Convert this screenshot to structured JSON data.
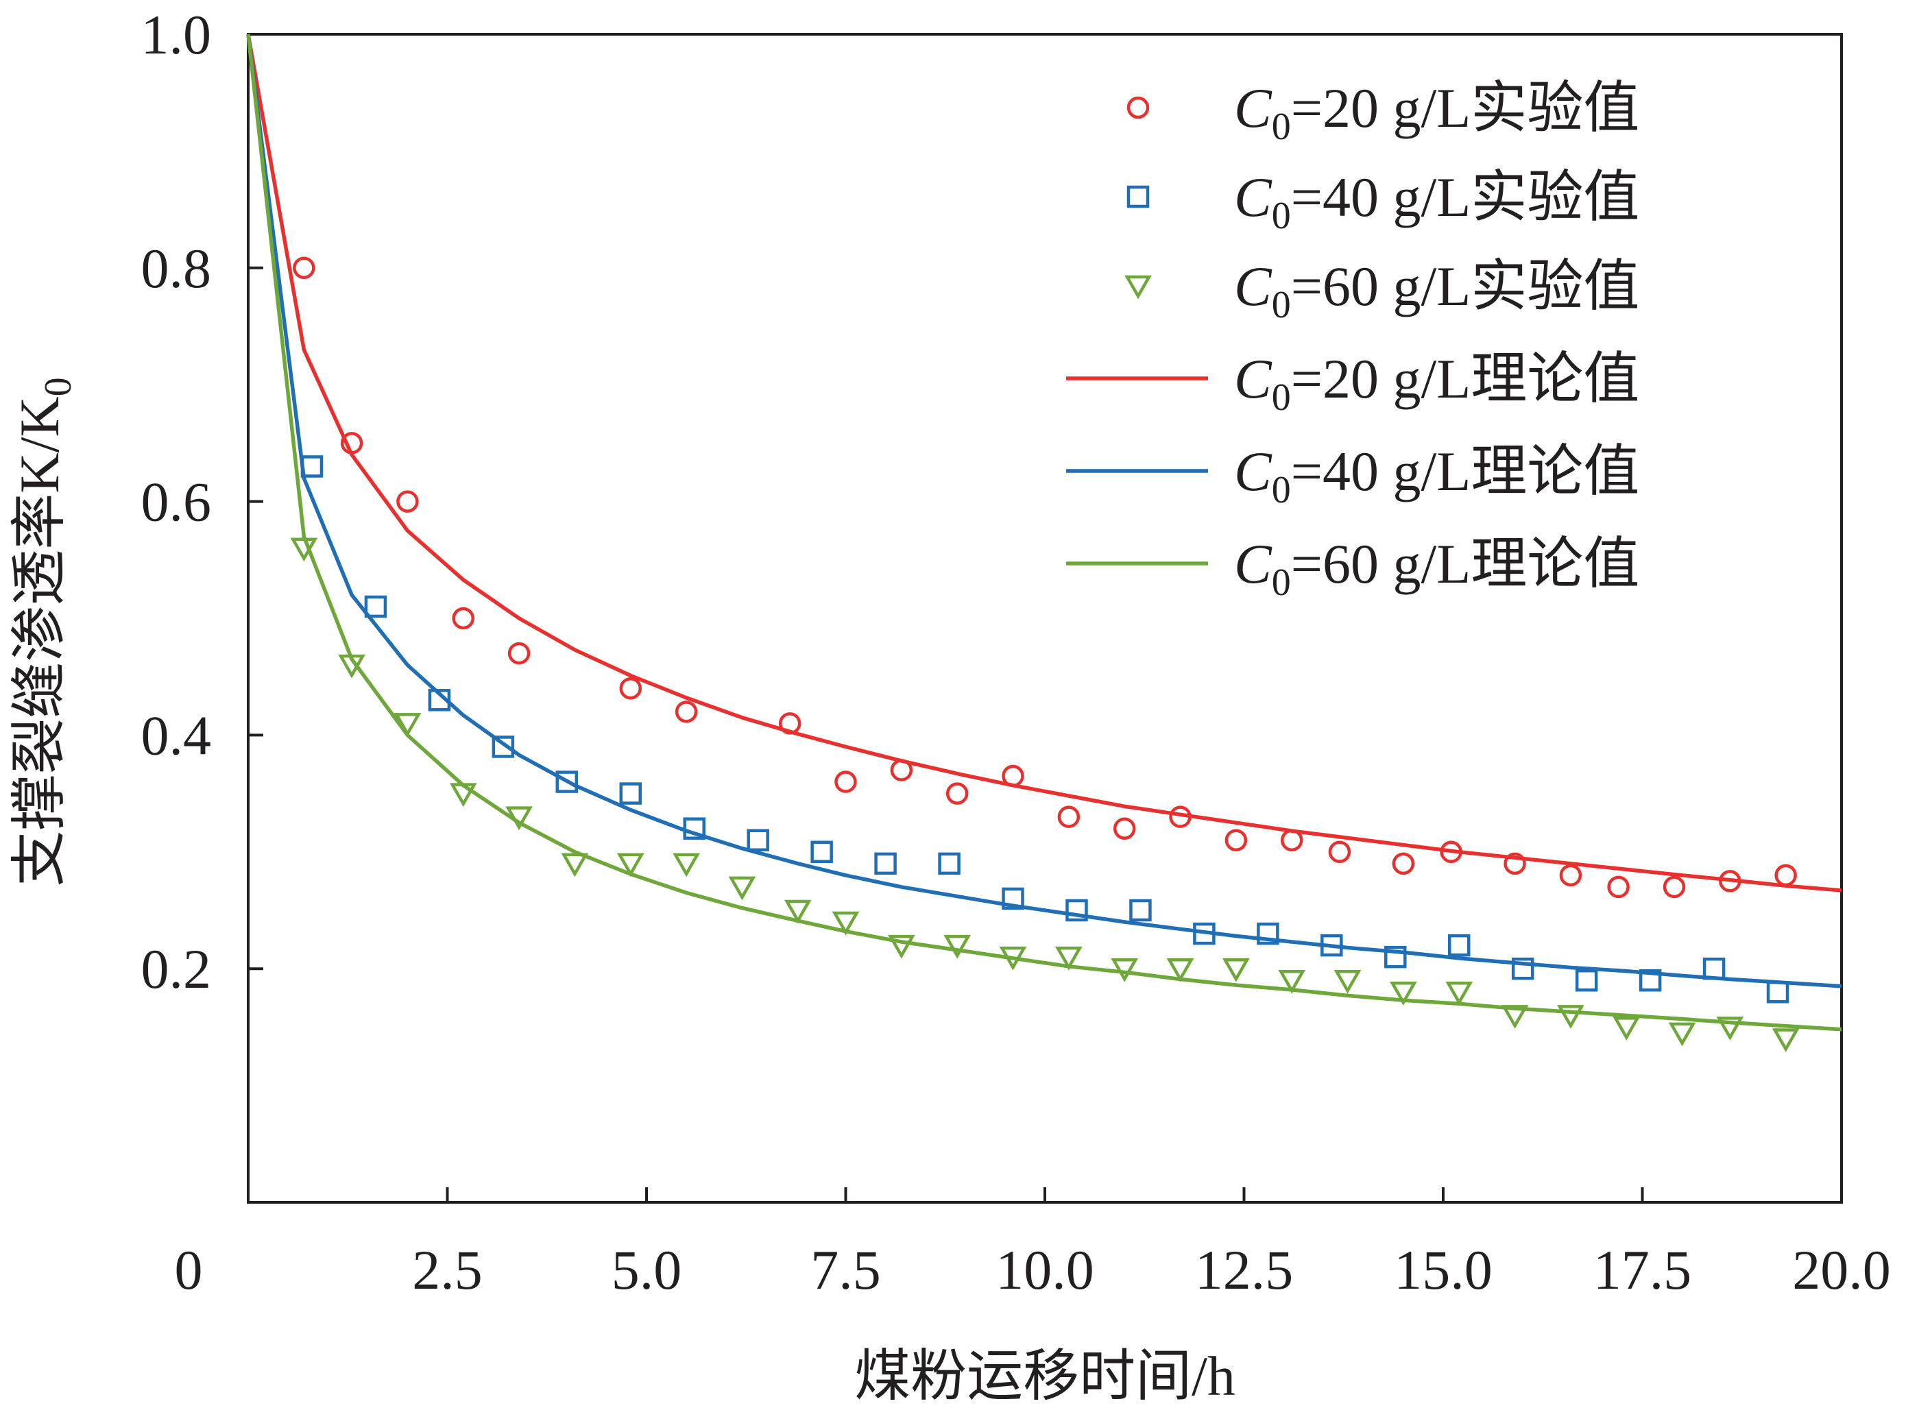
{
  "chart_data": {
    "type": "scatter",
    "xlabel": "煤粉运移时间/h",
    "ylabel": "支撑裂缝渗透率K/K",
    "ylabel_sub": "0",
    "xlim": [
      0,
      20
    ],
    "ylim": [
      0,
      1.0
    ],
    "x_tick_values": [
      0,
      2.5,
      5.0,
      7.5,
      10.0,
      12.5,
      15.0,
      17.5,
      20.0
    ],
    "x_tick_labels": [
      "0",
      "2.5",
      "5.0",
      "7.5",
      "10.0",
      "12.5",
      "15.0",
      "17.5",
      "20.0"
    ],
    "y_tick_values": [
      0.2,
      0.4,
      0.6,
      0.8,
      1.0
    ],
    "y_tick_labels": [
      "0.2",
      "0.4",
      "0.6",
      "0.8",
      "1.0"
    ],
    "grid": false,
    "legend_position": "top-right",
    "series": [
      {
        "kind": "points",
        "marker": "circle",
        "color": "#e8312f",
        "legend": {
          "italic": "C",
          "sub": "0",
          "rest": "=20 g/L实验值"
        },
        "x": [
          0.7,
          1.3,
          2.0,
          2.7,
          3.4,
          4.8,
          5.5,
          6.8,
          7.5,
          8.2,
          8.9,
          9.6,
          10.3,
          11.0,
          11.7,
          12.4,
          13.1,
          13.7,
          14.5,
          15.1,
          15.9,
          16.6,
          17.2,
          17.9,
          18.6,
          19.3
        ],
        "y": [
          0.8,
          0.65,
          0.6,
          0.5,
          0.47,
          0.44,
          0.42,
          0.41,
          0.36,
          0.37,
          0.35,
          0.365,
          0.33,
          0.32,
          0.33,
          0.31,
          0.31,
          0.3,
          0.29,
          0.3,
          0.29,
          0.28,
          0.27,
          0.27,
          0.275,
          0.28
        ]
      },
      {
        "kind": "points",
        "marker": "square",
        "color": "#1f6eb6",
        "legend": {
          "italic": "C",
          "sub": "0",
          "rest": "=40 g/L实验值"
        },
        "x": [
          0.8,
          1.6,
          2.4,
          3.2,
          4.0,
          4.8,
          5.6,
          6.4,
          7.2,
          8.0,
          8.8,
          9.6,
          10.4,
          11.2,
          12.0,
          12.8,
          13.6,
          14.4,
          15.2,
          16.0,
          16.8,
          17.6,
          18.4,
          19.2
        ],
        "y": [
          0.63,
          0.51,
          0.43,
          0.39,
          0.36,
          0.35,
          0.32,
          0.31,
          0.3,
          0.29,
          0.29,
          0.26,
          0.25,
          0.25,
          0.23,
          0.23,
          0.22,
          0.21,
          0.22,
          0.2,
          0.19,
          0.19,
          0.2,
          0.18
        ]
      },
      {
        "kind": "points",
        "marker": "triangle-down",
        "color": "#6fa83a",
        "legend": {
          "italic": "C",
          "sub": "0",
          "rest": "=60 g/L实验值"
        },
        "x": [
          0.7,
          1.3,
          2.0,
          2.7,
          3.4,
          4.1,
          4.8,
          5.5,
          6.2,
          6.9,
          7.5,
          8.2,
          8.9,
          9.6,
          10.3,
          11.0,
          11.7,
          12.4,
          13.1,
          13.8,
          14.5,
          15.2,
          15.9,
          16.6,
          17.3,
          18.0,
          18.6,
          19.3
        ],
        "y": [
          0.56,
          0.46,
          0.41,
          0.35,
          0.33,
          0.29,
          0.29,
          0.29,
          0.27,
          0.25,
          0.24,
          0.22,
          0.22,
          0.21,
          0.21,
          0.2,
          0.2,
          0.2,
          0.19,
          0.19,
          0.18,
          0.18,
          0.16,
          0.16,
          0.15,
          0.145,
          0.15,
          0.14
        ]
      },
      {
        "kind": "line",
        "color": "#e8312f",
        "legend": {
          "italic": "C",
          "sub": "0",
          "rest": "=20 g/L理论值"
        },
        "x": [
          0,
          0.7,
          1.3,
          2.0,
          2.7,
          3.4,
          4.1,
          4.8,
          5.5,
          6.2,
          6.9,
          7.5,
          8.2,
          8.9,
          9.6,
          10.3,
          11.0,
          11.7,
          12.4,
          13.1,
          13.8,
          14.5,
          15.2,
          15.9,
          16.6,
          17.3,
          18.0,
          18.6,
          19.3,
          20.0
        ],
        "y": [
          1.0,
          0.73,
          0.64,
          0.575,
          0.533,
          0.5,
          0.473,
          0.451,
          0.432,
          0.415,
          0.401,
          0.39,
          0.378,
          0.367,
          0.357,
          0.348,
          0.339,
          0.332,
          0.325,
          0.318,
          0.312,
          0.306,
          0.3,
          0.295,
          0.29,
          0.285,
          0.28,
          0.276,
          0.271,
          0.267
        ]
      },
      {
        "kind": "line",
        "color": "#1f6eb6",
        "legend": {
          "italic": "C",
          "sub": "0",
          "rest": "=40 g/L理论值"
        },
        "x": [
          0,
          0.7,
          1.3,
          2.0,
          2.7,
          3.4,
          4.1,
          4.8,
          5.5,
          6.2,
          6.9,
          7.5,
          8.2,
          8.9,
          9.6,
          10.3,
          11.0,
          11.7,
          12.4,
          13.1,
          13.8,
          14.5,
          15.2,
          15.9,
          16.6,
          17.3,
          18.0,
          18.6,
          19.3,
          20.0
        ],
        "y": [
          1.0,
          0.62,
          0.52,
          0.46,
          0.417,
          0.383,
          0.357,
          0.336,
          0.318,
          0.303,
          0.29,
          0.28,
          0.27,
          0.262,
          0.254,
          0.247,
          0.24,
          0.234,
          0.228,
          0.223,
          0.218,
          0.214,
          0.209,
          0.205,
          0.201,
          0.198,
          0.194,
          0.191,
          0.188,
          0.185
        ]
      },
      {
        "kind": "line",
        "color": "#6fa83a",
        "legend": {
          "italic": "C",
          "sub": "0",
          "rest": "=60 g/L理论值"
        },
        "x": [
          0,
          0.7,
          1.3,
          2.0,
          2.7,
          3.4,
          4.1,
          4.8,
          5.5,
          6.2,
          6.9,
          7.5,
          8.2,
          8.9,
          9.6,
          10.3,
          11.0,
          11.7,
          12.4,
          13.1,
          13.8,
          14.5,
          15.2,
          15.9,
          16.6,
          17.3,
          18.0,
          18.6,
          19.3,
          20.0
        ],
        "y": [
          1.0,
          0.57,
          0.465,
          0.4,
          0.357,
          0.325,
          0.3,
          0.281,
          0.265,
          0.252,
          0.241,
          0.232,
          0.223,
          0.216,
          0.209,
          0.202,
          0.197,
          0.191,
          0.186,
          0.182,
          0.177,
          0.173,
          0.17,
          0.166,
          0.163,
          0.16,
          0.157,
          0.154,
          0.151,
          0.148
        ]
      }
    ]
  }
}
